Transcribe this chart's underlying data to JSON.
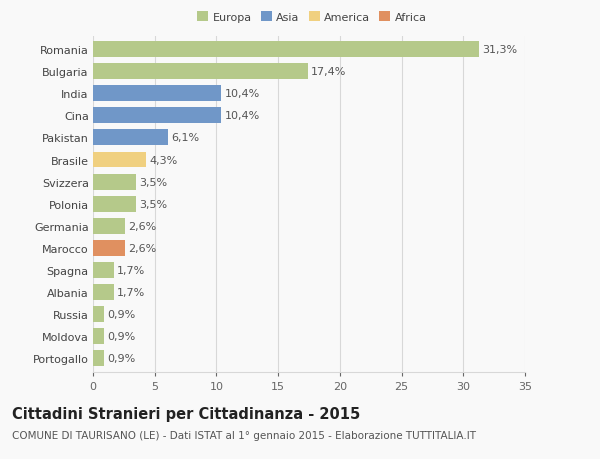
{
  "countries": [
    "Romania",
    "Bulgaria",
    "India",
    "Cina",
    "Pakistan",
    "Brasile",
    "Svizzera",
    "Polonia",
    "Germania",
    "Marocco",
    "Spagna",
    "Albania",
    "Russia",
    "Moldova",
    "Portogallo"
  ],
  "values": [
    31.3,
    17.4,
    10.4,
    10.4,
    6.1,
    4.3,
    3.5,
    3.5,
    2.6,
    2.6,
    1.7,
    1.7,
    0.9,
    0.9,
    0.9
  ],
  "labels": [
    "31,3%",
    "17,4%",
    "10,4%",
    "10,4%",
    "6,1%",
    "4,3%",
    "3,5%",
    "3,5%",
    "2,6%",
    "2,6%",
    "1,7%",
    "1,7%",
    "0,9%",
    "0,9%",
    "0,9%"
  ],
  "colors": [
    "#b5c98a",
    "#b5c98a",
    "#7097c8",
    "#7097c8",
    "#7097c8",
    "#f0d080",
    "#b5c98a",
    "#b5c98a",
    "#b5c98a",
    "#e09060",
    "#b5c98a",
    "#b5c98a",
    "#b5c98a",
    "#b5c98a",
    "#b5c98a"
  ],
  "legend_labels": [
    "Europa",
    "Asia",
    "America",
    "Africa"
  ],
  "legend_colors": [
    "#b5c98a",
    "#7097c8",
    "#f0d080",
    "#e09060"
  ],
  "title": "Cittadini Stranieri per Cittadinanza - 2015",
  "subtitle": "COMUNE DI TAURISANO (LE) - Dati ISTAT al 1° gennaio 2015 - Elaborazione TUTTITALIA.IT",
  "xlim": [
    0,
    35
  ],
  "xticks": [
    0,
    5,
    10,
    15,
    20,
    25,
    30,
    35
  ],
  "background_color": "#f9f9f9",
  "grid_color": "#d8d8d8",
  "bar_height": 0.72,
  "label_fontsize": 8,
  "tick_fontsize": 8,
  "title_fontsize": 10.5,
  "subtitle_fontsize": 7.5
}
